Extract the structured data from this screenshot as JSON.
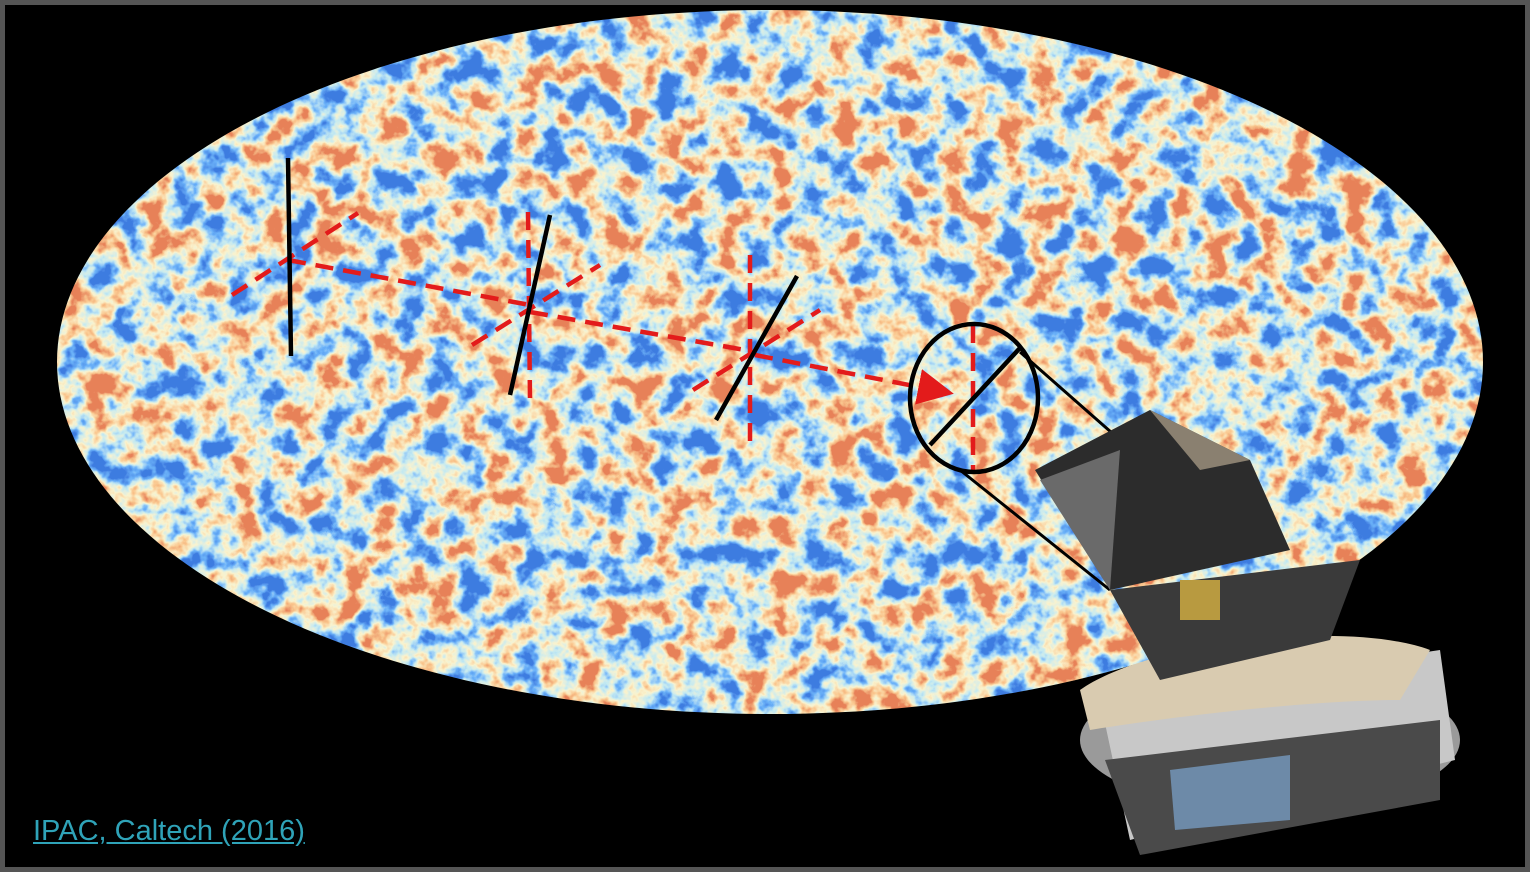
{
  "credit": {
    "text": "IPAC, Caltech (2016)"
  }
}
